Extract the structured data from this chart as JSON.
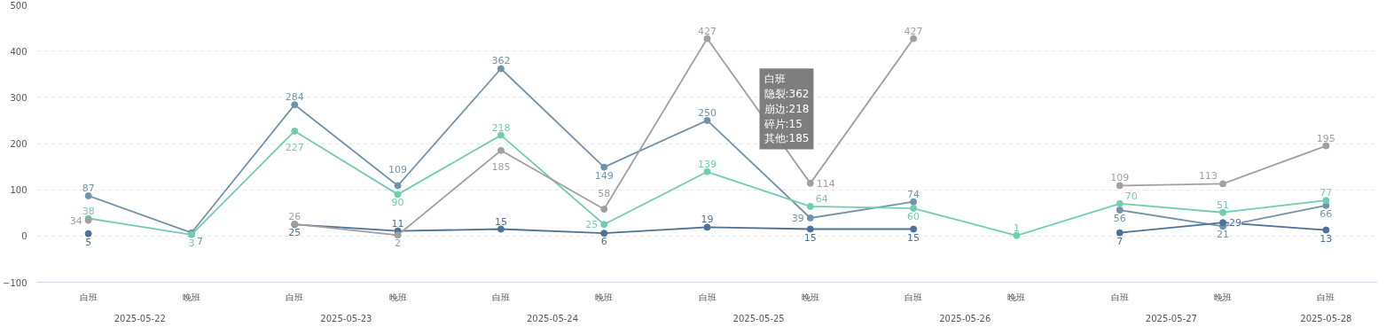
{
  "chart_data": {
    "type": "line",
    "categories": [
      "白班",
      "晚班",
      "白班",
      "晚班",
      "白班",
      "晚班",
      "白班",
      "晚班",
      "白班",
      "晚班",
      "白班",
      "晚班",
      "白班"
    ],
    "series": [
      {
        "color": "#7393ac",
        "values": [
          87,
          7,
          284,
          109,
          362,
          149,
          250,
          39,
          74,
          null,
          56,
          21,
          66
        ]
      },
      {
        "color": "#72cdb0",
        "values": [
          38,
          3,
          227,
          90,
          218,
          25,
          139,
          64,
          60,
          1,
          70,
          51,
          77
        ]
      },
      {
        "color": "#4d7298",
        "values": [
          5,
          null,
          25,
          11,
          15,
          6,
          19,
          15,
          15,
          null,
          7,
          29,
          13
        ]
      },
      {
        "color": "#a0a0a0",
        "values": [
          34,
          null,
          26,
          2,
          185,
          58,
          427,
          114,
          427,
          null,
          109,
          113,
          195
        ]
      }
    ],
    "ylim": [
      -100,
      500
    ],
    "yticks": [
      -100,
      0,
      100,
      200,
      300,
      400,
      500
    ],
    "grid": "y",
    "marker": "circle",
    "data_labels": true,
    "annotations": [
      "2025-05-22",
      "2025-05-23",
      "2025-05-24",
      "2025-05-25",
      "2025-05-26",
      "2025-05-27",
      "2025-05-28",
      "白班",
      "隐裂:362",
      "崩边:218",
      "碎片:15",
      "其他:185"
    ]
  }
}
